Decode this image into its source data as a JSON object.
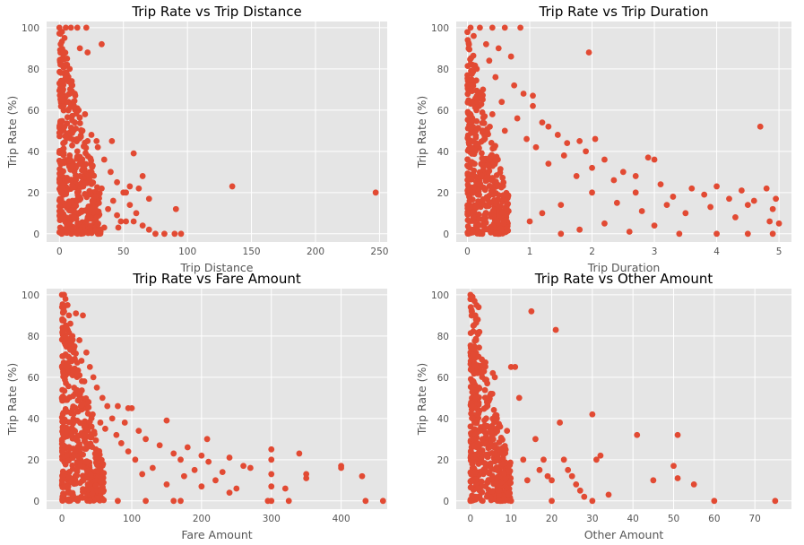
{
  "style": {
    "background": "#E5E5E5",
    "grid": "#FFFFFF",
    "marker": "#E24A33"
  },
  "chart_data": [
    {
      "type": "scatter",
      "title": "Trip Rate vs Trip Distance",
      "xlabel": "Trip Distance",
      "ylabel": "Trip Rate (%)",
      "xlim": [
        -10,
        256
      ],
      "ylim": [
        -4,
        103
      ],
      "xticks": [
        0,
        50,
        100,
        150,
        200,
        250
      ],
      "yticks": [
        0,
        20,
        40,
        60,
        80,
        100
      ],
      "grid": true,
      "points": [
        [
          0,
          100
        ],
        [
          5,
          100
        ],
        [
          9,
          100
        ],
        [
          14,
          100
        ],
        [
          21,
          100
        ],
        [
          2,
          98
        ],
        [
          4,
          95
        ],
        [
          1,
          92
        ],
        [
          3,
          88
        ],
        [
          6,
          85
        ],
        [
          2,
          82
        ],
        [
          8,
          80
        ],
        [
          5,
          76
        ],
        [
          10,
          72
        ],
        [
          3,
          70
        ],
        [
          12,
          68
        ],
        [
          7,
          64
        ],
        [
          15,
          60
        ],
        [
          20,
          58
        ],
        [
          10,
          55
        ],
        [
          4,
          52
        ],
        [
          18,
          50
        ],
        [
          25,
          48
        ],
        [
          22,
          45
        ],
        [
          30,
          42
        ],
        [
          14,
          40
        ],
        [
          8,
          38
        ],
        [
          35,
          36
        ],
        [
          26,
          33
        ],
        [
          40,
          30
        ],
        [
          16,
          28
        ],
        [
          45,
          25
        ],
        [
          33,
          22
        ],
        [
          50,
          20
        ],
        [
          28,
          18
        ],
        [
          42,
          16
        ],
        [
          55,
          14
        ],
        [
          38,
          12
        ],
        [
          60,
          10
        ],
        [
          24,
          8
        ],
        [
          48,
          6
        ],
        [
          65,
          4
        ],
        [
          35,
          3
        ],
        [
          70,
          2
        ],
        [
          20,
          1
        ],
        [
          75,
          0
        ],
        [
          82,
          0
        ],
        [
          90,
          0
        ],
        [
          95,
          0
        ],
        [
          33,
          92
        ],
        [
          16,
          90
        ],
        [
          22,
          88
        ],
        [
          41,
          45
        ],
        [
          29,
          45
        ],
        [
          58,
          39
        ],
        [
          65,
          28
        ],
        [
          55,
          23
        ],
        [
          62,
          22
        ],
        [
          52,
          20
        ],
        [
          70,
          17
        ],
        [
          135,
          23
        ],
        [
          247,
          20
        ],
        [
          91,
          12
        ],
        [
          58,
          6
        ],
        [
          52,
          6
        ],
        [
          45,
          9
        ],
        [
          46,
          3
        ]
      ]
    },
    {
      "type": "scatter",
      "title": "Trip Rate vs Trip Duration",
      "xlabel": "Trip Duration",
      "ylabel": "Trip Rate (%)",
      "xlim": [
        -0.18,
        5.2
      ],
      "ylim": [
        -4,
        103
      ],
      "xticks": [
        0,
        1,
        2,
        3,
        4,
        5
      ],
      "yticks": [
        0,
        20,
        40,
        60,
        80,
        100
      ],
      "grid": true,
      "points": [
        [
          0.05,
          100
        ],
        [
          0.2,
          100
        ],
        [
          0.4,
          100
        ],
        [
          0.6,
          100
        ],
        [
          0.85,
          100
        ],
        [
          0.1,
          96
        ],
        [
          0.3,
          92
        ],
        [
          0.5,
          90
        ],
        [
          0.7,
          86
        ],
        [
          0.35,
          84
        ],
        [
          0.15,
          80
        ],
        [
          0.45,
          76
        ],
        [
          0.75,
          72
        ],
        [
          0.25,
          70
        ],
        [
          0.9,
          68
        ],
        [
          0.55,
          64
        ],
        [
          1.05,
          62
        ],
        [
          0.4,
          58
        ],
        [
          0.8,
          56
        ],
        [
          1.2,
          54
        ],
        [
          1.3,
          52
        ],
        [
          0.6,
          50
        ],
        [
          1.45,
          48
        ],
        [
          0.95,
          46
        ],
        [
          1.6,
          44
        ],
        [
          1.8,
          45
        ],
        [
          2.05,
          46
        ],
        [
          1.1,
          42
        ],
        [
          1.9,
          40
        ],
        [
          1.55,
          38
        ],
        [
          2.2,
          36
        ],
        [
          2.9,
          37
        ],
        [
          3.0,
          36
        ],
        [
          1.3,
          34
        ],
        [
          2.0,
          32
        ],
        [
          2.5,
          30
        ],
        [
          1.75,
          28
        ],
        [
          2.7,
          28
        ],
        [
          2.35,
          26
        ],
        [
          3.1,
          24
        ],
        [
          3.6,
          22
        ],
        [
          4.0,
          23
        ],
        [
          4.4,
          21
        ],
        [
          4.8,
          22
        ],
        [
          2.0,
          20
        ],
        [
          2.7,
          20
        ],
        [
          3.3,
          18
        ],
        [
          3.8,
          19
        ],
        [
          4.2,
          17
        ],
        [
          4.6,
          16
        ],
        [
          4.95,
          17
        ],
        [
          1.5,
          14
        ],
        [
          2.4,
          15
        ],
        [
          3.2,
          14
        ],
        [
          3.9,
          13
        ],
        [
          4.5,
          14
        ],
        [
          4.9,
          12
        ],
        [
          1.2,
          10
        ],
        [
          2.8,
          11
        ],
        [
          3.5,
          10
        ],
        [
          4.3,
          8
        ],
        [
          4.85,
          6
        ],
        [
          5.0,
          5
        ],
        [
          1.0,
          6
        ],
        [
          2.2,
          5
        ],
        [
          3.0,
          4
        ],
        [
          1.8,
          2
        ],
        [
          2.6,
          1
        ],
        [
          3.4,
          0
        ],
        [
          4.0,
          0
        ],
        [
          4.5,
          0
        ],
        [
          4.9,
          0
        ],
        [
          1.5,
          0
        ],
        [
          0.5,
          0
        ],
        [
          4.7,
          52
        ],
        [
          1.95,
          88
        ],
        [
          1.05,
          67
        ]
      ]
    },
    {
      "type": "scatter",
      "title": "Trip Rate vs Fare Amount",
      "xlabel": "Fare Amount",
      "ylabel": "Trip Rate (%)",
      "xlim": [
        -22,
        466
      ],
      "ylim": [
        -4,
        103
      ],
      "xticks": [
        0,
        100,
        200,
        300,
        400
      ],
      "yticks": [
        0,
        20,
        40,
        60,
        80,
        100
      ],
      "grid": true,
      "points": [
        [
          0,
          100
        ],
        [
          3,
          100
        ],
        [
          5,
          98
        ],
        [
          8,
          95
        ],
        [
          2,
          92
        ],
        [
          10,
          90
        ],
        [
          20,
          91
        ],
        [
          30,
          90
        ],
        [
          12,
          86
        ],
        [
          6,
          84
        ],
        [
          15,
          80
        ],
        [
          25,
          78
        ],
        [
          18,
          75
        ],
        [
          35,
          72
        ],
        [
          9,
          70
        ],
        [
          28,
          68
        ],
        [
          40,
          65
        ],
        [
          22,
          62
        ],
        [
          45,
          60
        ],
        [
          32,
          58
        ],
        [
          50,
          55
        ],
        [
          26,
          52
        ],
        [
          58,
          50
        ],
        [
          38,
          48
        ],
        [
          65,
          46
        ],
        [
          80,
          46
        ],
        [
          95,
          45
        ],
        [
          100,
          45
        ],
        [
          44,
          42
        ],
        [
          72,
          40
        ],
        [
          55,
          38
        ],
        [
          90,
          38
        ],
        [
          150,
          39
        ],
        [
          62,
          35
        ],
        [
          110,
          34
        ],
        [
          78,
          32
        ],
        [
          120,
          30
        ],
        [
          85,
          28
        ],
        [
          140,
          27
        ],
        [
          180,
          26
        ],
        [
          95,
          24
        ],
        [
          160,
          23
        ],
        [
          200,
          22
        ],
        [
          240,
          21
        ],
        [
          105,
          20
        ],
        [
          170,
          20
        ],
        [
          210,
          19
        ],
        [
          260,
          17
        ],
        [
          130,
          16
        ],
        [
          190,
          15
        ],
        [
          230,
          14
        ],
        [
          270,
          16
        ],
        [
          115,
          13
        ],
        [
          175,
          12
        ],
        [
          220,
          10
        ],
        [
          250,
          6
        ],
        [
          150,
          8
        ],
        [
          200,
          7
        ],
        [
          240,
          4
        ],
        [
          300,
          25
        ],
        [
          300,
          20
        ],
        [
          300,
          13
        ],
        [
          300,
          7
        ],
        [
          300,
          0
        ],
        [
          295,
          0
        ],
        [
          320,
          6
        ],
        [
          325,
          0
        ],
        [
          340,
          23
        ],
        [
          350,
          11
        ],
        [
          350,
          13
        ],
        [
          400,
          17
        ],
        [
          400,
          16
        ],
        [
          430,
          12
        ],
        [
          435,
          0
        ],
        [
          460,
          0
        ],
        [
          208,
          30
        ],
        [
          170,
          0
        ],
        [
          160,
          0
        ],
        [
          120,
          0
        ],
        [
          80,
          0
        ],
        [
          40,
          0
        ],
        [
          10,
          0
        ]
      ]
    },
    {
      "type": "scatter",
      "title": "Trip Rate vs Other Amount",
      "xlabel": "Other Amount",
      "ylabel": "Trip Rate (%)",
      "xlim": [
        -3.5,
        79
      ],
      "ylim": [
        -4,
        103
      ],
      "xticks": [
        0,
        10,
        20,
        30,
        40,
        50,
        60,
        70
      ],
      "yticks": [
        0,
        20,
        40,
        60,
        80,
        100
      ],
      "grid": true,
      "points": [
        [
          0,
          100
        ],
        [
          0.5,
          99
        ],
        [
          1,
          97
        ],
        [
          1.5,
          95
        ],
        [
          2,
          94
        ],
        [
          0.3,
          92
        ],
        [
          1.2,
          90
        ],
        [
          1.8,
          88
        ],
        [
          0.7,
          85
        ],
        [
          2.2,
          82
        ],
        [
          1.4,
          78
        ],
        [
          0.9,
          74
        ],
        [
          2.0,
          70
        ],
        [
          1.1,
          66
        ],
        [
          1.7,
          62
        ],
        [
          0.6,
          58
        ],
        [
          2.1,
          55
        ],
        [
          1.3,
          50
        ],
        [
          0.4,
          46
        ],
        [
          1.9,
          42
        ],
        [
          1.0,
          38
        ],
        [
          2.3,
          34
        ],
        [
          0.8,
          30
        ],
        [
          1.6,
          26
        ],
        [
          0.2,
          22
        ],
        [
          2.0,
          18
        ],
        [
          1.2,
          14
        ],
        [
          0.5,
          10
        ],
        [
          1.8,
          6
        ],
        [
          1.0,
          2
        ],
        [
          0,
          0
        ],
        [
          3,
          30
        ],
        [
          4,
          22
        ],
        [
          5,
          52
        ],
        [
          5.5,
          62
        ],
        [
          6,
          60
        ],
        [
          6.5,
          40
        ],
        [
          7,
          25
        ],
        [
          8,
          18
        ],
        [
          9,
          34
        ],
        [
          10,
          65
        ],
        [
          11,
          65
        ],
        [
          12,
          50
        ],
        [
          13,
          20
        ],
        [
          14,
          10
        ],
        [
          15,
          92
        ],
        [
          16,
          30
        ],
        [
          17,
          15
        ],
        [
          18,
          20
        ],
        [
          19,
          12
        ],
        [
          20,
          10
        ],
        [
          21,
          83
        ],
        [
          22,
          38
        ],
        [
          23,
          20
        ],
        [
          24,
          15
        ],
        [
          25,
          12
        ],
        [
          26,
          8
        ],
        [
          27,
          5
        ],
        [
          28,
          2
        ],
        [
          30,
          42
        ],
        [
          31,
          20
        ],
        [
          32,
          22
        ],
        [
          34,
          3
        ],
        [
          41,
          32
        ],
        [
          45,
          10
        ],
        [
          50,
          17
        ],
        [
          51,
          11
        ],
        [
          51,
          32
        ],
        [
          55,
          8
        ],
        [
          60,
          0
        ],
        [
          75,
          0
        ],
        [
          10,
          0
        ],
        [
          20,
          0
        ],
        [
          30,
          0
        ]
      ]
    }
  ]
}
